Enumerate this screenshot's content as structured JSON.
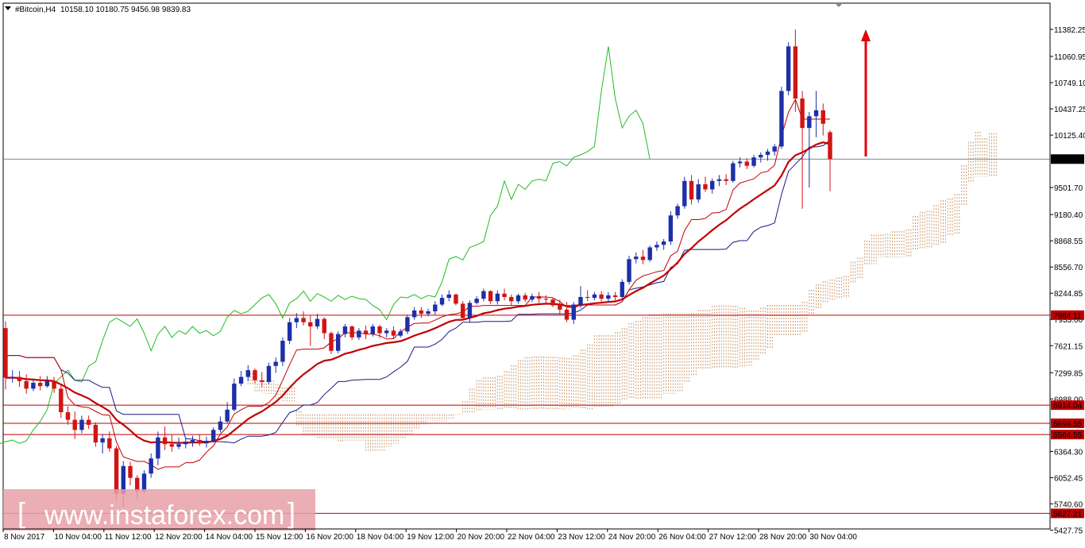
{
  "header": {
    "symbol": "#Bitcoin,H4",
    "ohlc": "10158.10 10180.75 9456.98 9839.83"
  },
  "watermark": {
    "text": "www.instaforex.com"
  },
  "colors": {
    "bull": "#1d2fa8",
    "bear": "#d21414",
    "level": "#c00000",
    "chikou": "#22bb22",
    "tenkan": "#c00000",
    "kijun": "#1a1a80",
    "cloud": "#c89a6e",
    "current": "#7a8a96"
  },
  "chart_data": {
    "type": "candlestick",
    "symbol": "#Bitcoin,H4",
    "price_ticks": [
      "11382.25",
      "11060.95",
      "10749.10",
      "10437.25",
      "10125.40",
      "9501.70",
      "9180.40",
      "8868.55",
      "8556.70",
      "8244.85",
      "7933.00",
      "7621.15",
      "7299.85",
      "6988.00",
      "6364.30",
      "6052.45",
      "5740.60",
      "5427.75"
    ],
    "time_labels": [
      "8 Nov 2017",
      "10 Nov 04:00",
      "11 Nov 12:00",
      "12 Nov 20:00",
      "14 Nov 04:00",
      "15 Nov 12:00",
      "16 Nov 20:00",
      "18 Nov 04:00",
      "19 Nov 12:00",
      "20 Nov 20:00",
      "22 Nov 04:00",
      "23 Nov 12:00",
      "24 Nov 20:00",
      "26 Nov 04:00",
      "27 Nov 12:00",
      "28 Nov 20:00",
      "30 Nov 04:00"
    ],
    "current_price": 9839.83,
    "levels": [
      7984.11,
      6914.04,
      6698.55,
      6564.55,
      5627.21
    ],
    "candles": [
      [
        7830,
        7910,
        7100,
        7240
      ],
      [
        7240,
        7330,
        7180,
        7250
      ],
      [
        7250,
        7320,
        7130,
        7200
      ],
      [
        7200,
        7280,
        7050,
        7110
      ],
      [
        7110,
        7220,
        7080,
        7180
      ],
      [
        7180,
        7260,
        7090,
        7140
      ],
      [
        7140,
        7260,
        7120,
        7200
      ],
      [
        7200,
        7250,
        7060,
        7110
      ],
      [
        7110,
        7170,
        6760,
        6830
      ],
      [
        6830,
        6900,
        6680,
        6740
      ],
      [
        6740,
        6840,
        6510,
        6620
      ],
      [
        6620,
        6790,
        6580,
        6740
      ],
      [
        6740,
        6790,
        6630,
        6680
      ],
      [
        6680,
        6710,
        6420,
        6470
      ],
      [
        6470,
        6570,
        6340,
        6520
      ],
      [
        6520,
        6600,
        6360,
        6400
      ],
      [
        6400,
        6430,
        5780,
        5860
      ],
      [
        5860,
        6250,
        5700,
        6190
      ],
      [
        6190,
        6240,
        5960,
        6050
      ],
      [
        6050,
        6080,
        5800,
        5890
      ],
      [
        5890,
        6140,
        5860,
        6100
      ],
      [
        6100,
        6340,
        6050,
        6280
      ],
      [
        6280,
        6600,
        6200,
        6530
      ],
      [
        6530,
        6660,
        6380,
        6450
      ],
      [
        6450,
        6560,
        6360,
        6420
      ],
      [
        6420,
        6530,
        6390,
        6450
      ],
      [
        6450,
        6530,
        6400,
        6480
      ],
      [
        6480,
        6550,
        6420,
        6500
      ],
      [
        6500,
        6560,
        6430,
        6460
      ],
      [
        6460,
        6540,
        6410,
        6490
      ],
      [
        6490,
        6650,
        6470,
        6620
      ],
      [
        6620,
        6780,
        6590,
        6720
      ],
      [
        6720,
        6950,
        6700,
        6860
      ],
      [
        6860,
        7230,
        6840,
        7170
      ],
      [
        7170,
        7320,
        7140,
        7250
      ],
      [
        7250,
        7390,
        7200,
        7330
      ],
      [
        7330,
        7350,
        7170,
        7210
      ],
      [
        7210,
        7310,
        7130,
        7190
      ],
      [
        7190,
        7420,
        7160,
        7380
      ],
      [
        7380,
        7480,
        7300,
        7430
      ],
      [
        7430,
        7720,
        7380,
        7680
      ],
      [
        7680,
        7950,
        7640,
        7900
      ],
      [
        7900,
        8010,
        7830,
        7950
      ],
      [
        7950,
        8030,
        7860,
        7900
      ],
      [
        7900,
        7980,
        7620,
        7850
      ],
      [
        7850,
        8000,
        7820,
        7940
      ],
      [
        7940,
        7960,
        7700,
        7770
      ],
      [
        7770,
        7790,
        7520,
        7560
      ],
      [
        7560,
        7790,
        7530,
        7760
      ],
      [
        7760,
        7880,
        7720,
        7850
      ],
      [
        7850,
        7860,
        7690,
        7720
      ],
      [
        7720,
        7830,
        7690,
        7800
      ],
      [
        7800,
        7860,
        7700,
        7760
      ],
      [
        7760,
        7880,
        7730,
        7850
      ],
      [
        7850,
        7870,
        7710,
        7770
      ],
      [
        7770,
        7830,
        7720,
        7800
      ],
      [
        7800,
        7850,
        7700,
        7740
      ],
      [
        7740,
        7820,
        7720,
        7790
      ],
      [
        7790,
        7990,
        7760,
        7960
      ],
      [
        7960,
        8080,
        7930,
        8040
      ],
      [
        8040,
        8080,
        7950,
        8000
      ],
      [
        8000,
        8060,
        7970,
        8030
      ],
      [
        8030,
        8150,
        7990,
        8110
      ],
      [
        8110,
        8230,
        8090,
        8190
      ],
      [
        8190,
        8280,
        8150,
        8230
      ],
      [
        8230,
        8240,
        8100,
        8120
      ],
      [
        8120,
        8150,
        7920,
        7950
      ],
      [
        7950,
        8160,
        7900,
        8130
      ],
      [
        8130,
        8210,
        8110,
        8180
      ],
      [
        8180,
        8300,
        8150,
        8270
      ],
      [
        8270,
        8280,
        8120,
        8150
      ],
      [
        8150,
        8280,
        8110,
        8240
      ],
      [
        8240,
        8300,
        8160,
        8200
      ],
      [
        8200,
        8230,
        8100,
        8150
      ],
      [
        8150,
        8240,
        8120,
        8220
      ],
      [
        8220,
        8250,
        8140,
        8170
      ],
      [
        8170,
        8240,
        8140,
        8210
      ],
      [
        8210,
        8260,
        8130,
        8180
      ],
      [
        8180,
        8220,
        8130,
        8170
      ],
      [
        8170,
        8190,
        8080,
        8100
      ],
      [
        8100,
        8170,
        7990,
        8050
      ],
      [
        8050,
        8140,
        7900,
        7930
      ],
      [
        7930,
        8140,
        7880,
        8110
      ],
      [
        8110,
        8330,
        8070,
        8200
      ],
      [
        8200,
        8280,
        8150,
        8190
      ],
      [
        8190,
        8260,
        8160,
        8230
      ],
      [
        8230,
        8270,
        8140,
        8180
      ],
      [
        8180,
        8260,
        8140,
        8220
      ],
      [
        8220,
        8260,
        8160,
        8200
      ],
      [
        8200,
        8410,
        8180,
        8380
      ],
      [
        8380,
        8690,
        8350,
        8650
      ],
      [
        8650,
        8730,
        8600,
        8680
      ],
      [
        8680,
        8760,
        8590,
        8640
      ],
      [
        8640,
        8810,
        8620,
        8790
      ],
      [
        8790,
        8860,
        8750,
        8820
      ],
      [
        8820,
        8890,
        8760,
        8860
      ],
      [
        8860,
        9220,
        8820,
        9170
      ],
      [
        9170,
        9310,
        9130,
        9280
      ],
      [
        9280,
        9630,
        9250,
        9580
      ],
      [
        9580,
        9650,
        9300,
        9360
      ],
      [
        9360,
        9600,
        9320,
        9540
      ],
      [
        9540,
        9630,
        9450,
        9480
      ],
      [
        9480,
        9610,
        9430,
        9580
      ],
      [
        9580,
        9650,
        9520,
        9600
      ],
      [
        9600,
        9660,
        9530,
        9580
      ],
      [
        9580,
        9820,
        9560,
        9790
      ],
      [
        9790,
        9860,
        9740,
        9810
      ],
      [
        9810,
        9850,
        9720,
        9760
      ],
      [
        9760,
        9890,
        9740,
        9860
      ],
      [
        9860,
        9920,
        9800,
        9890
      ],
      [
        9890,
        9960,
        9820,
        9930
      ],
      [
        9930,
        10020,
        9880,
        9990
      ],
      [
        9990,
        10700,
        9960,
        10650
      ],
      [
        10650,
        11230,
        10600,
        11180
      ],
      [
        11180,
        11380,
        10400,
        10560
      ],
      [
        10560,
        10650,
        9250,
        10210
      ],
      [
        10210,
        10400,
        9500,
        10350
      ],
      [
        10350,
        10650,
        10100,
        10420
      ],
      [
        10420,
        10500,
        10120,
        10260
      ],
      [
        10160,
        10180,
        9457,
        9840
      ]
    ]
  }
}
